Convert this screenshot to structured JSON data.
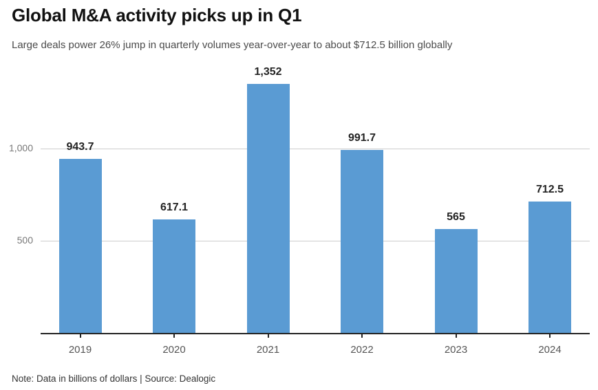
{
  "header": {
    "title": "Global M&A activity picks up in Q1",
    "subtitle": "Large deals power 26% jump in quarterly volumes year-over-year to about $712.5 billion globally"
  },
  "chart_data": {
    "type": "bar",
    "categories": [
      "2019",
      "2020",
      "2021",
      "2022",
      "2023",
      "2024"
    ],
    "values": [
      943.7,
      617.1,
      1352,
      991.7,
      565,
      712.5
    ],
    "value_labels": [
      "943.7",
      "617.1",
      "1,352",
      "991.7",
      "565",
      "712.5"
    ],
    "title": "Global M&A activity picks up in Q1",
    "xlabel": "",
    "ylabel": "",
    "ylim": [
      0,
      1440
    ],
    "yticks": [
      500,
      1000
    ],
    "ytick_labels": [
      "500",
      "1,000"
    ],
    "grid": "horizontal-behind-bars",
    "legend": "none"
  },
  "footer": {
    "note": "Note: Data in billions of dollars | Source: Dealogic"
  },
  "colors": {
    "bar": "#5a9bd3",
    "grid": "#cccccc",
    "axis": "#222222",
    "title": "#111111",
    "subtitle": "#4a4a4a",
    "ytick_label": "#777777",
    "xtick_label": "#555555",
    "value_label": "#222222"
  }
}
